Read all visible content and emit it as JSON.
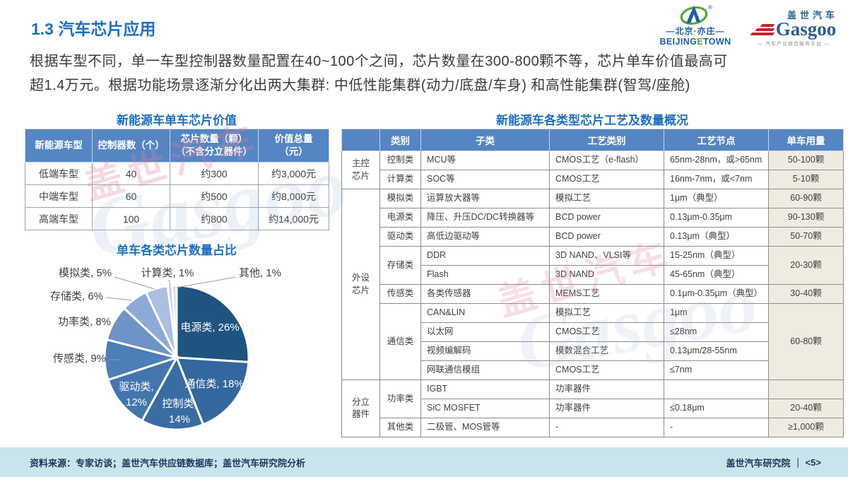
{
  "slide": {
    "title": "1.3 汽车芯片应用",
    "intro": "根据车型不同，单一车型控制器数量配置在40~100个之间，芯片数量在300-800颗不等，芯片单车价值最高可\n超1.4万元。根据功能场景逐渐分化出两大集群: 中低性能集群(动力/底盘/车身) 和高性能集群(智驾/座舱)"
  },
  "logos": {
    "bjet_cn": "—北京·亦庄—",
    "bjet_en1": "BEIJING",
    "bjet_en2": "E",
    "bjet_en3": "TOWN",
    "gasgoo_cn": "盖世汽车",
    "gasgoo_en": "Gasgoo",
    "gasgoo_tagline": "— 汽车产业综合服务平台 —"
  },
  "value_table": {
    "title": "新能源车单车芯片价值",
    "headers": [
      "新能源车型",
      "控制器数（个）",
      "芯片数量（颗）\n（不含分立器件）",
      "价值总量\n（元）"
    ],
    "rows": [
      [
        "低端车型",
        "40",
        "约300",
        "约3,000元"
      ],
      [
        "中端车型",
        "60",
        "约500",
        "约8,000元"
      ],
      [
        "高端车型",
        "100",
        "约800",
        "约14,000元"
      ]
    ]
  },
  "chart_data": {
    "type": "pie",
    "title": "单车各类芯片数量占比",
    "categories": [
      "电源类",
      "通信类",
      "控制类",
      "驱动类",
      "传感类",
      "功率类",
      "存储类",
      "模拟类",
      "计算类",
      "其他"
    ],
    "values": [
      26,
      18,
      14,
      12,
      9,
      8,
      6,
      5,
      1,
      1
    ],
    "unit": "%",
    "colors": [
      "#1F5380",
      "#34679D",
      "#3A6CA2",
      "#4475AD",
      "#4C7EB7",
      "#6E94C7",
      "#8FA9D6",
      "#ACBEE2",
      "#C2CFEA",
      "#D4DDF1"
    ],
    "label_format": "名称, 数值%",
    "legend": "none",
    "start_angle_deg": 0,
    "direction": "clockwise"
  },
  "process_table": {
    "title": "新能源车各类型芯片工艺及数量概况",
    "corner": "",
    "headers": [
      "类别",
      "子类",
      "工艺类别",
      "工艺节点",
      "单车用量"
    ],
    "groups": [
      "主控\n芯片",
      "外设\n芯片",
      "分立\n器件"
    ],
    "rows": [
      {
        "cat": "控制类",
        "sub": "MCU等",
        "proc": "CMOS工艺（e-flash）",
        "node": "65nm-28nm，或>65nm",
        "qty": "50-100颗"
      },
      {
        "cat": "计算类",
        "sub": "SOC等",
        "proc": "CMOS工艺",
        "node": "16nm-7nm，或<7nm",
        "qty": "5-10颗"
      },
      {
        "cat": "模拟类",
        "sub": "运算放大器等",
        "proc": "模拟工艺",
        "node": "1μm（典型）",
        "qty": "60-90颗"
      },
      {
        "cat": "电源类",
        "sub": "降压、升压DC/DC转换器等",
        "proc": "BCD power",
        "node": "0.13μm-0.35μm",
        "qty": "90-130颗"
      },
      {
        "cat": "驱动类",
        "sub": "高低边驱动等",
        "proc": "BCD power",
        "node": "0.13μm（典型）",
        "qty": "50-70颗"
      },
      {
        "cat": "存储类",
        "sub": "DDR",
        "proc": "3D NAND、VLSI等",
        "node": "15-25nm（典型）",
        "qty": "20-30颗"
      },
      {
        "sub": "Flash",
        "proc": "3D NAND",
        "node": "45-65nm（典型）"
      },
      {
        "cat": "传感类",
        "sub": "各类传感器",
        "proc": "MEMS工艺",
        "node": "0.1μm-0.35μm（典型）",
        "qty": "30-40颗"
      },
      {
        "cat": "通信类",
        "sub": "CAN&LIN",
        "proc": "模拟工艺",
        "node": "1μm",
        "qty": "60-80颗"
      },
      {
        "sub": "以太网",
        "proc": "CMOS工艺",
        "node": "≤28nm"
      },
      {
        "sub": "视频编解码",
        "proc": "模数混合工艺",
        "node": "0.13μm/28-55nm"
      },
      {
        "sub": "网联通信模组",
        "proc": "CMOS工艺",
        "node": "≤7nm"
      },
      {
        "cat": "功率类",
        "sub": "IGBT",
        "proc": "功率器件",
        "node": "",
        "qty": ""
      },
      {
        "sub": "SiC MOSFET",
        "proc": "功率器件",
        "node": "≤0.18μm",
        "qty": "20-40颗"
      },
      {
        "cat": "其他类",
        "sub": "二极管、MOS管等",
        "proc": "-",
        "node": "-",
        "qty": "≥1,000颗"
      }
    ]
  },
  "footer": {
    "source": "资料来源：专家访谈；盖世汽车供应链数据库；盖世汽车研究院分析",
    "institute": "盖世汽车研究院",
    "separator": "｜",
    "page": "<5>"
  },
  "watermarks": {
    "cn": "盖世汽车",
    "en": "Gasgoo"
  }
}
